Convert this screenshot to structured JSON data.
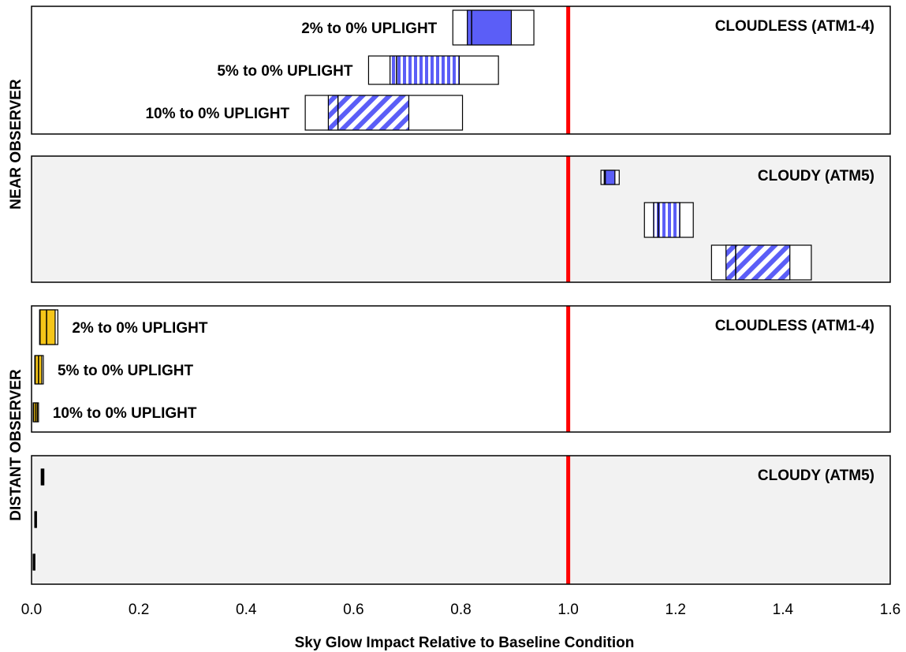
{
  "chart_data": {
    "type": "box-range",
    "x_axis": {
      "label": "Sky Glow Impact Relative to Baseline Condition",
      "lim": [
        0,
        1.6
      ],
      "ticks": [
        "0.0",
        "0.2",
        "0.4",
        "0.6",
        "0.8",
        "1.0",
        "1.2",
        "1.4",
        "1.6"
      ],
      "gridlines": true
    },
    "reference_line": {
      "x": 1.0,
      "color": "#ff0000"
    },
    "groups": [
      {
        "label": "NEAR OBSERVER",
        "panels": [
          0,
          1
        ]
      },
      {
        "label": "DISTANT OBSERVER",
        "panels": [
          2,
          3
        ]
      }
    ],
    "series": [
      {
        "name": "2% to 0% UPLIGHT",
        "pattern": "solid"
      },
      {
        "name": "5% to 0% UPLIGHT",
        "pattern": "vertical-stripes"
      },
      {
        "name": "10% to 0% UPLIGHT",
        "pattern": "diagonal-stripes"
      }
    ],
    "panels": [
      {
        "title": "CLOUDLESS (ATM1-4)",
        "background": "#ffffff",
        "color": "#5b5ef7",
        "show_series_labels": true,
        "label_side": "left",
        "rows": [
          {
            "series": "2% to 0% UPLIGHT",
            "min": 0.785,
            "max": 0.936,
            "q1": 0.812,
            "q3": 0.894,
            "median": 0.82
          },
          {
            "series": "5% to 0% UPLIGHT",
            "min": 0.628,
            "max": 0.87,
            "q1": 0.668,
            "q3": 0.797,
            "median": 0.68
          },
          {
            "series": "10% to 0% UPLIGHT",
            "min": 0.51,
            "max": 0.803,
            "q1": 0.553,
            "q3": 0.703,
            "median": 0.571
          }
        ]
      },
      {
        "title": "CLOUDY (ATM5)",
        "background": "#f2f2f2",
        "color": "#5b5ef7",
        "show_series_labels": false,
        "rows": [
          {
            "series": "2% to 0% UPLIGHT",
            "min": 1.061,
            "max": 1.095,
            "q1": 1.067,
            "q3": 1.087,
            "median": 1.069
          },
          {
            "series": "5% to 0% UPLIGHT",
            "min": 1.142,
            "max": 1.233,
            "q1": 1.159,
            "q3": 1.208,
            "median": 1.168
          },
          {
            "series": "10% to 0% UPLIGHT",
            "min": 1.267,
            "max": 1.453,
            "q1": 1.294,
            "q3": 1.413,
            "median": 1.312
          }
        ]
      },
      {
        "title": "CLOUDLESS (ATM1-4)",
        "background": "#ffffff",
        "color": "#f5c518",
        "show_series_labels": true,
        "label_side": "right",
        "rows": [
          {
            "series": "2% to 0% UPLIGHT",
            "min": 0.015,
            "max": 0.049,
            "q1": 0.016,
            "q3": 0.044,
            "median": 0.028
          },
          {
            "series": "5% to 0% UPLIGHT",
            "min": 0.006,
            "max": 0.022,
            "q1": 0.007,
            "q3": 0.019,
            "median": 0.013
          },
          {
            "series": "10% to 0% UPLIGHT",
            "min": 0.003,
            "max": 0.013,
            "q1": 0.004,
            "q3": 0.011,
            "median": 0.008
          }
        ]
      },
      {
        "title": "CLOUDY (ATM5)",
        "background": "#f2f2f2",
        "color": "#000000",
        "show_series_labels": false,
        "rows": [
          {
            "series": "2% to 0% UPLIGHT",
            "min": 0.018,
            "max": 0.023,
            "q1": 0.019,
            "q3": 0.022,
            "median": 0.02
          },
          {
            "series": "5% to 0% UPLIGHT",
            "min": 0.006,
            "max": 0.009,
            "q1": 0.007,
            "q3": 0.008,
            "median": 0.0075
          },
          {
            "series": "10% to 0% UPLIGHT",
            "min": 0.003,
            "max": 0.006,
            "q1": 0.004,
            "q3": 0.005,
            "median": 0.0045
          }
        ]
      }
    ]
  }
}
